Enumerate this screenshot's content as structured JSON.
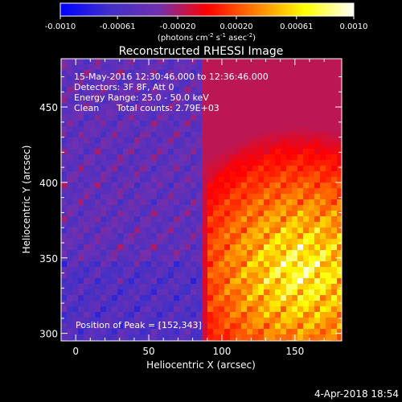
{
  "chart_data": {
    "type": "heatmap",
    "title": "Reconstructed RHESSI Image",
    "xlabel": "Heliocentric X (arcsec)",
    "ylabel": "Heliocentric Y (arcsec)",
    "xlim": [
      -10,
      182
    ],
    "ylim": [
      295,
      482
    ],
    "x_ticks": [
      0,
      50,
      100,
      150
    ],
    "y_ticks": [
      300,
      350,
      400,
      450
    ],
    "colorbar": {
      "range": [
        -0.001,
        0.001
      ],
      "ticks": [
        -0.001,
        -0.00061,
        -0.0002,
        0.0002,
        0.00061,
        0.001
      ],
      "tick_labels": [
        "-0.0010",
        "-0.00061",
        "-0.00020",
        "0.00020",
        "0.00061",
        "0.0010"
      ],
      "units_prefix": "(photons cm",
      "units_exp1": "-2",
      "units_mid1": " s",
      "units_exp2": "-1",
      "units_mid2": " asec",
      "units_exp3": "-2",
      "units_suffix": ")"
    },
    "colormap": [
      "#0000ff",
      "#4030c8",
      "#7030b0",
      "#ff0000",
      "#ff8000",
      "#ffff00",
      "#ffffff"
    ],
    "annotations": {
      "time_range": "15-May-2016 12:30:46.000 to 12:36:46.000",
      "detectors": "Detectors: 3F 8F, Att 0",
      "energy": "Energy Range: 25.0 - 50.0 keV",
      "clean_label": "Clean",
      "total_counts": "Total counts: 2.79E+03",
      "peak": "Position of Peak = [152,343]"
    },
    "peak": [
      152,
      343
    ]
  },
  "footer": {
    "timestamp": "4-Apr-2018 18:54"
  }
}
